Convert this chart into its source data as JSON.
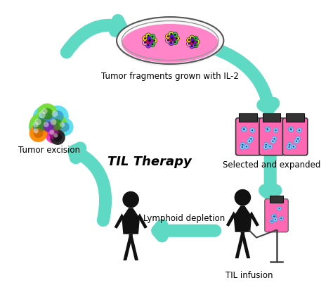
{
  "title": "TIL Therapy",
  "labels": {
    "top": "Tumor fragments grown with IL-2",
    "right": "Selected and expanded",
    "bottom_right": "TIL infusion",
    "bottom_center": "Lymphoid depletion",
    "left": "Tumor excision"
  },
  "arrow_color": "#5DD9C4",
  "background_color": "#ffffff",
  "petri_fill": "#FF85C8",
  "bag_fill": "#FF69B4",
  "person_color": "#111111",
  "title_fontsize": 13,
  "label_fontsize": 8.5
}
